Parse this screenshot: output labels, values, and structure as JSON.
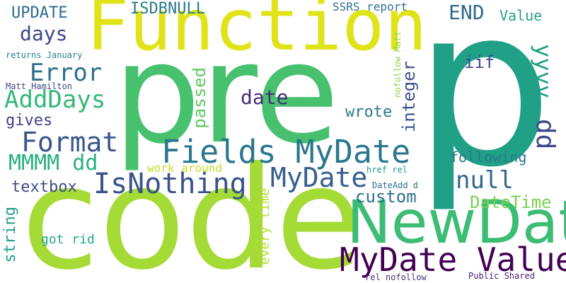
{
  "words": [
    {
      "text": "p",
      "color": "#21a088"
    },
    {
      "text": "pre",
      "color": "#47c16e"
    },
    {
      "text": "code",
      "color": "#a5db36"
    },
    {
      "text": "Function",
      "color": "#dfe318"
    },
    {
      "text": "NewDate",
      "color": "#3cbc74"
    },
    {
      "text": "Fields MyDate",
      "color": "#2a788e"
    },
    {
      "text": "MyDate Value",
      "color": "#440154"
    },
    {
      "text": "IsNothing",
      "color": "#3b528b"
    },
    {
      "text": "MyDate",
      "color": "#355f8d"
    },
    {
      "text": "Format",
      "color": "#39568c"
    },
    {
      "text": "AddDays",
      "color": "#35b779"
    },
    {
      "text": "Error",
      "color": "#2c728e"
    },
    {
      "text": "days",
      "color": "#3e4989"
    },
    {
      "text": "MMMM dd",
      "color": "#2ab07f"
    },
    {
      "text": "END",
      "color": "#31688e"
    },
    {
      "text": "UPDATE",
      "color": "#306a8e"
    },
    {
      "text": "ISDBNULL",
      "color": "#297b8e"
    },
    {
      "text": "yyyy",
      "color": "#1fa187"
    },
    {
      "text": "dd",
      "color": "#3f4889"
    },
    {
      "text": "null",
      "color": "#31688e"
    },
    {
      "text": "custom",
      "color": "#2c728e"
    },
    {
      "text": "DateTime",
      "color": "#7ad151"
    },
    {
      "text": "textbox",
      "color": "#3e4a89"
    },
    {
      "text": "integer",
      "color": "#3b528b"
    },
    {
      "text": "passed",
      "color": "#5ec962"
    },
    {
      "text": "gives",
      "color": "#424086"
    },
    {
      "text": "wrote",
      "color": "#2a788e"
    },
    {
      "text": "date",
      "color": "#472d7b"
    },
    {
      "text": "iif",
      "color": "#3e4989"
    },
    {
      "text": "Value",
      "color": "#2c9f87"
    },
    {
      "text": "following",
      "color": "#2a788e"
    },
    {
      "text": "string",
      "color": "#1f9e89"
    },
    {
      "text": "got rid",
      "color": "#22a884"
    },
    {
      "text": "every time",
      "color": "#b5de2b"
    },
    {
      "text": "work around",
      "color": "#c2df23"
    },
    {
      "text": "SSRS report",
      "color": "#2c728e"
    },
    {
      "text": "returns January",
      "color": "#277f8e"
    },
    {
      "text": "Matt Hamilton",
      "color": "#3f4889"
    },
    {
      "text": "nofollow Matt",
      "color": "#8fd744"
    },
    {
      "text": "DateAdd d",
      "color": "#2d708e"
    },
    {
      "text": "href rel",
      "color": "#1f9a8a"
    },
    {
      "text": "rel nofollow",
      "color": "#46337e"
    },
    {
      "text": "Public Shared",
      "color": "#481f70"
    }
  ]
}
